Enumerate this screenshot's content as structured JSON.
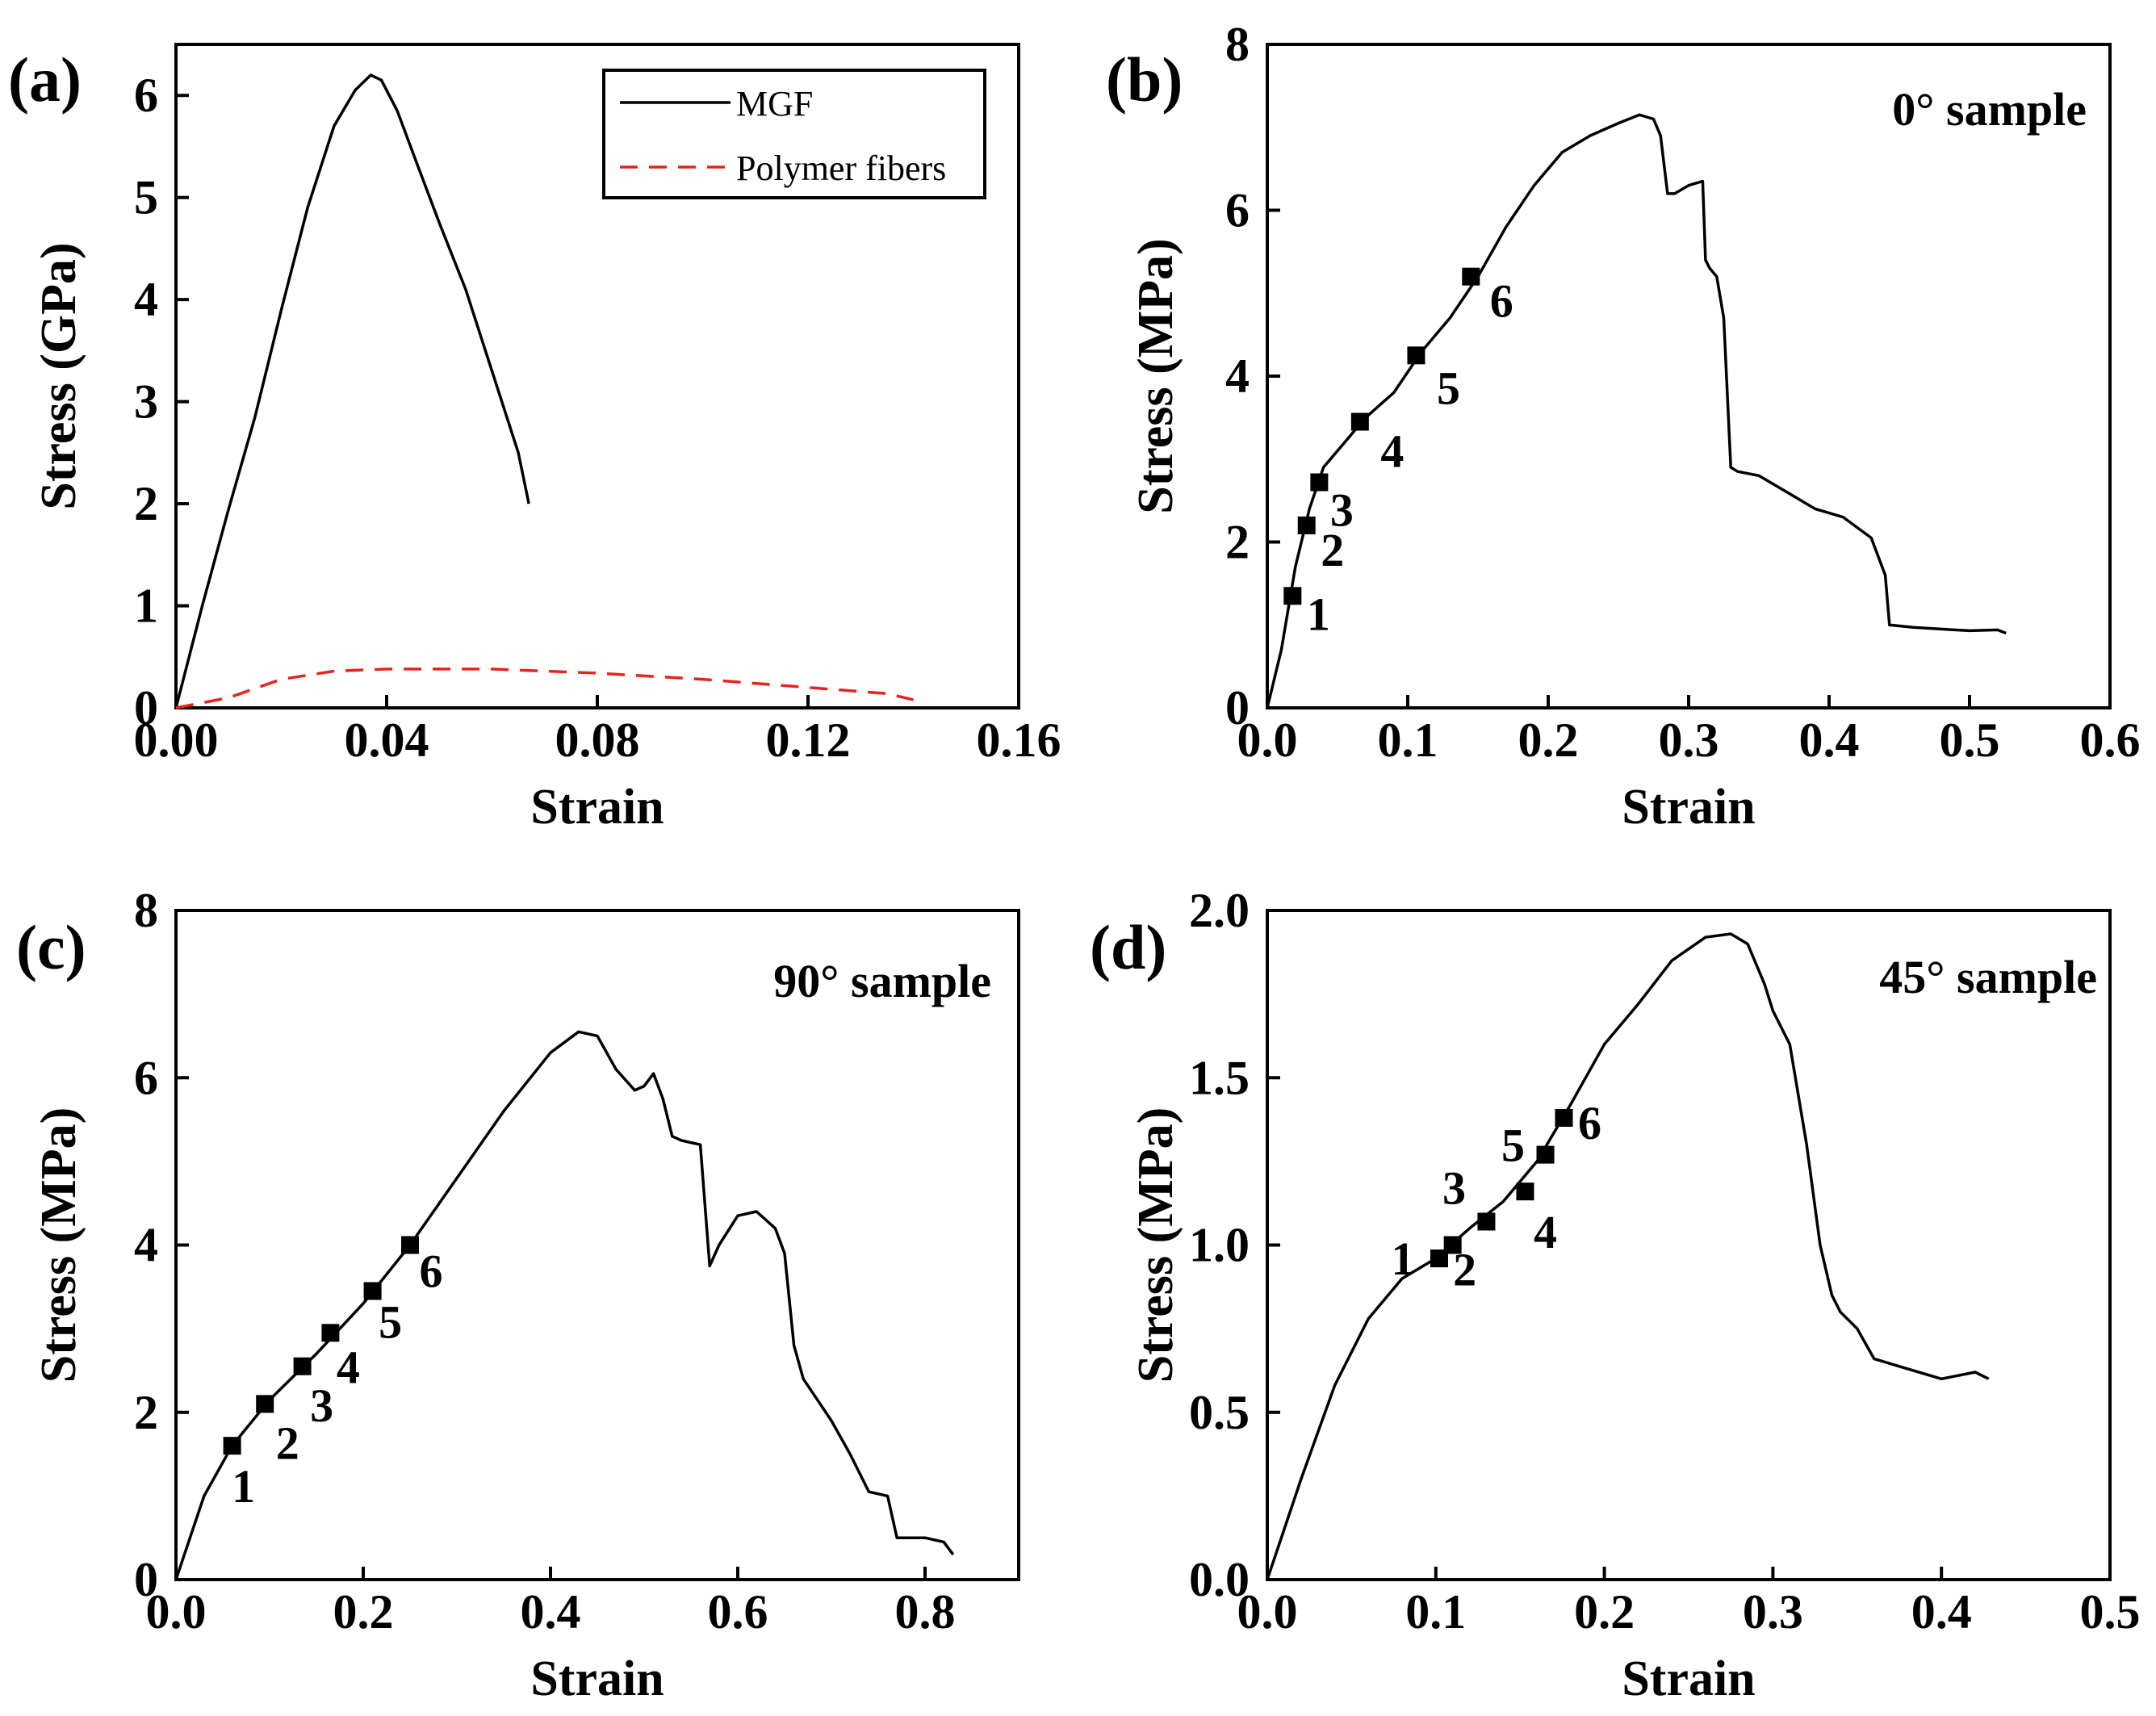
{
  "chart_data": [
    {
      "panel": "(a)",
      "type": "line",
      "xlabel": "Strain",
      "ylabel": "Stress (GPa)",
      "xlim": [
        0,
        0.16
      ],
      "ylim": [
        0,
        6.5
      ],
      "xticks": [
        "0.00",
        "0.04",
        "0.08",
        "0.12",
        "0.16"
      ],
      "xtick_values": [
        0,
        0.04,
        0.08,
        0.12,
        0.16
      ],
      "yticks": [
        "0",
        "1",
        "2",
        "3",
        "4",
        "5",
        "6"
      ],
      "ytick_values": [
        0,
        1,
        2,
        3,
        4,
        5,
        6
      ],
      "annotation": "",
      "legend": {
        "placement": "top-right",
        "entries": [
          "MGF",
          "Polymer fibers"
        ]
      },
      "series": [
        {
          "name": "MGF",
          "style": "solid",
          "color": "#000000",
          "x": [
            0,
            0.005,
            0.01,
            0.015,
            0.02,
            0.025,
            0.03,
            0.034,
            0.037,
            0.039,
            0.042,
            0.046,
            0.05,
            0.055,
            0.06,
            0.065,
            0.067
          ],
          "y": [
            0,
            1.0,
            1.95,
            2.85,
            3.9,
            4.9,
            5.7,
            6.05,
            6.2,
            6.15,
            5.85,
            5.3,
            4.75,
            4.1,
            3.3,
            2.5,
            2.0
          ]
        },
        {
          "name": "Polymer fibers",
          "style": "dashed",
          "color": "#e8221c",
          "x": [
            0,
            0.01,
            0.02,
            0.03,
            0.04,
            0.06,
            0.08,
            0.1,
            0.12,
            0.135,
            0.14
          ],
          "y": [
            0,
            0.1,
            0.28,
            0.36,
            0.38,
            0.38,
            0.34,
            0.28,
            0.2,
            0.14,
            0.08
          ]
        }
      ],
      "points": []
    },
    {
      "panel": "(b)",
      "type": "line",
      "xlabel": "Strain",
      "ylabel": "Stress (MPa)",
      "xlim": [
        0,
        0.6
      ],
      "ylim": [
        0,
        8
      ],
      "xticks": [
        "0.0",
        "0.1",
        "0.2",
        "0.3",
        "0.4",
        "0.5",
        "0.6"
      ],
      "xtick_values": [
        0,
        0.1,
        0.2,
        0.3,
        0.4,
        0.5,
        0.6
      ],
      "yticks": [
        "0",
        "2",
        "4",
        "6",
        "8"
      ],
      "ytick_values": [
        0,
        2,
        4,
        6,
        8
      ],
      "annotation": "0° sample",
      "series": [
        {
          "style": "solid",
          "color": "#000000",
          "x": [
            0,
            0.01,
            0.02,
            0.03,
            0.04,
            0.055,
            0.07,
            0.09,
            0.11,
            0.13,
            0.15,
            0.17,
            0.19,
            0.21,
            0.23,
            0.25,
            0.265,
            0.275,
            0.28,
            0.285,
            0.29,
            0.3,
            0.31,
            0.312,
            0.315,
            0.32,
            0.325,
            0.33,
            0.335,
            0.35,
            0.37,
            0.39,
            0.41,
            0.43,
            0.44,
            0.443,
            0.46,
            0.48,
            0.5,
            0.52,
            0.526
          ],
          "y": [
            0,
            0.7,
            1.7,
            2.4,
            2.9,
            3.2,
            3.5,
            3.8,
            4.3,
            4.7,
            5.2,
            5.8,
            6.3,
            6.7,
            6.9,
            7.05,
            7.15,
            7.1,
            6.9,
            6.2,
            6.2,
            6.3,
            6.35,
            5.4,
            5.3,
            5.2,
            4.7,
            2.9,
            2.85,
            2.8,
            2.6,
            2.4,
            2.3,
            2.05,
            1.6,
            1.0,
            0.97,
            0.95,
            0.93,
            0.94,
            0.9
          ]
        }
      ],
      "points": [
        {
          "label": "1",
          "x": 0.018,
          "y": 1.35
        },
        {
          "label": "2",
          "x": 0.028,
          "y": 2.2
        },
        {
          "label": "3",
          "x": 0.037,
          "y": 2.72
        },
        {
          "label": "4",
          "x": 0.066,
          "y": 3.45
        },
        {
          "label": "5",
          "x": 0.106,
          "y": 4.25
        },
        {
          "label": "6",
          "x": 0.145,
          "y": 5.2
        }
      ]
    },
    {
      "panel": "(c)",
      "type": "line",
      "xlabel": "Strain",
      "ylabel": "Stress (MPa)",
      "xlim": [
        0,
        0.9
      ],
      "ylim": [
        0,
        8
      ],
      "xticks": [
        "0.0",
        "0.2",
        "0.4",
        "0.6",
        "0.8"
      ],
      "xtick_values": [
        0,
        0.2,
        0.4,
        0.6,
        0.8
      ],
      "yticks": [
        "0",
        "2",
        "4",
        "6",
        "8"
      ],
      "ytick_values": [
        0,
        2,
        4,
        6,
        8
      ],
      "annotation": "90° sample",
      "series": [
        {
          "style": "solid",
          "color": "#000000",
          "x": [
            0,
            0.03,
            0.06,
            0.1,
            0.15,
            0.2,
            0.25,
            0.3,
            0.35,
            0.4,
            0.43,
            0.45,
            0.47,
            0.49,
            0.5,
            0.51,
            0.52,
            0.53,
            0.54,
            0.56,
            0.57,
            0.58,
            0.6,
            0.62,
            0.64,
            0.65,
            0.66,
            0.67,
            0.7,
            0.72,
            0.74,
            0.76,
            0.77,
            0.8,
            0.82,
            0.83
          ],
          "y": [
            0,
            1.0,
            1.6,
            2.15,
            2.7,
            3.3,
            4.0,
            4.8,
            5.6,
            6.3,
            6.55,
            6.5,
            6.1,
            5.85,
            5.9,
            6.05,
            5.75,
            5.3,
            5.25,
            5.2,
            3.75,
            4.0,
            4.35,
            4.4,
            4.2,
            3.9,
            2.8,
            2.4,
            1.9,
            1.5,
            1.05,
            1.0,
            0.5,
            0.5,
            0.45,
            0.3
          ]
        }
      ],
      "points": [
        {
          "label": "1",
          "x": 0.06,
          "y": 1.6
        },
        {
          "label": "2",
          "x": 0.095,
          "y": 2.1
        },
        {
          "label": "3",
          "x": 0.135,
          "y": 2.55
        },
        {
          "label": "4",
          "x": 0.165,
          "y": 2.95
        },
        {
          "label": "5",
          "x": 0.21,
          "y": 3.45
        },
        {
          "label": "6",
          "x": 0.25,
          "y": 4.0
        }
      ]
    },
    {
      "panel": "(d)",
      "type": "line",
      "xlabel": "Strain",
      "ylabel": "Stress (MPa)",
      "xlim": [
        0,
        0.5
      ],
      "ylim": [
        0,
        2.0
      ],
      "xticks": [
        "0.0",
        "0.1",
        "0.2",
        "0.3",
        "0.4",
        "0.5"
      ],
      "xtick_values": [
        0,
        0.1,
        0.2,
        0.3,
        0.4,
        0.5
      ],
      "yticks": [
        "0.0",
        "0.5",
        "1.0",
        "1.5",
        "2.0"
      ],
      "ytick_values": [
        0,
        0.5,
        1.0,
        1.5,
        2.0
      ],
      "annotation": "45° sample",
      "series": [
        {
          "style": "solid",
          "color": "#000000",
          "x": [
            0,
            0.02,
            0.04,
            0.06,
            0.08,
            0.1,
            0.12,
            0.14,
            0.16,
            0.18,
            0.2,
            0.22,
            0.24,
            0.26,
            0.275,
            0.285,
            0.295,
            0.3,
            0.31,
            0.32,
            0.328,
            0.335,
            0.34,
            0.35,
            0.36,
            0.38,
            0.4,
            0.42,
            0.428
          ],
          "y": [
            0,
            0.3,
            0.58,
            0.78,
            0.9,
            0.96,
            1.05,
            1.13,
            1.25,
            1.42,
            1.6,
            1.72,
            1.85,
            1.92,
            1.93,
            1.9,
            1.78,
            1.7,
            1.6,
            1.3,
            1.0,
            0.85,
            0.8,
            0.75,
            0.66,
            0.63,
            0.6,
            0.62,
            0.6
          ]
        }
      ],
      "points": [
        {
          "label": "1",
          "x": 0.102,
          "y": 0.96
        },
        {
          "label": "2",
          "x": 0.11,
          "y": 1.0
        },
        {
          "label": "3",
          "x": 0.13,
          "y": 1.07
        },
        {
          "label": "4",
          "x": 0.153,
          "y": 1.16
        },
        {
          "label": "5",
          "x": 0.165,
          "y": 1.27
        },
        {
          "label": "6",
          "x": 0.176,
          "y": 1.38
        }
      ]
    }
  ]
}
